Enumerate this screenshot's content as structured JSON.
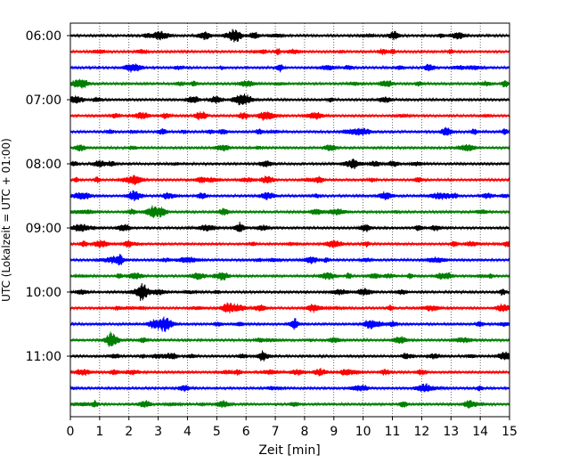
{
  "chart_data": {
    "type": "line",
    "title": "",
    "xlabel": "Zeit  [min]",
    "ylabel": "UTC (Lokalzeit = UTC + 01:00)",
    "xlim": [
      0,
      15
    ],
    "x_ticks": [
      "0",
      "1",
      "2",
      "3",
      "4",
      "5",
      "6",
      "7",
      "8",
      "9",
      "10",
      "11",
      "12",
      "13",
      "14",
      "15"
    ],
    "y_tick_labels": [
      "06:00",
      "07:00",
      "08:00",
      "09:00",
      "10:00",
      "11:00"
    ],
    "grid": "vertical-dotted",
    "trace_colors": [
      "#000000",
      "#ff0000",
      "#0000ff",
      "#007f00"
    ],
    "traces": [
      {
        "start": "06:00",
        "color": "#000000"
      },
      {
        "start": "06:15",
        "color": "#ff0000"
      },
      {
        "start": "06:30",
        "color": "#0000ff"
      },
      {
        "start": "06:45",
        "color": "#007f00"
      },
      {
        "start": "07:00",
        "color": "#000000"
      },
      {
        "start": "07:15",
        "color": "#ff0000"
      },
      {
        "start": "07:30",
        "color": "#0000ff"
      },
      {
        "start": "07:45",
        "color": "#007f00"
      },
      {
        "start": "08:00",
        "color": "#000000"
      },
      {
        "start": "08:15",
        "color": "#ff0000"
      },
      {
        "start": "08:30",
        "color": "#0000ff"
      },
      {
        "start": "08:45",
        "color": "#007f00"
      },
      {
        "start": "09:00",
        "color": "#000000"
      },
      {
        "start": "09:15",
        "color": "#ff0000"
      },
      {
        "start": "09:30",
        "color": "#0000ff"
      },
      {
        "start": "09:45",
        "color": "#007f00"
      },
      {
        "start": "10:00",
        "color": "#000000"
      },
      {
        "start": "10:15",
        "color": "#ff0000"
      },
      {
        "start": "10:30",
        "color": "#0000ff"
      },
      {
        "start": "10:45",
        "color": "#007f00"
      },
      {
        "start": "11:00",
        "color": "#000000"
      },
      {
        "start": "11:15",
        "color": "#ff0000"
      },
      {
        "start": "11:30",
        "color": "#0000ff"
      },
      {
        "start": "11:45",
        "color": "#007f00"
      }
    ]
  }
}
